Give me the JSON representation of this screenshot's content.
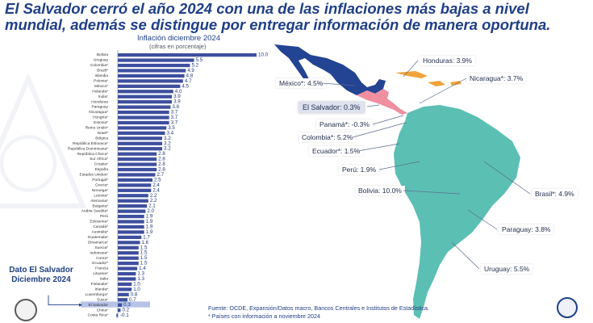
{
  "headline": {
    "line1": "El Salvador cerró el año 2024 con una de las inflaciones más bajas a nivel",
    "line2": "mundial, además se distingue por entregar información de manera oportuna."
  },
  "chart_data": {
    "type": "bar",
    "orientation": "horizontal",
    "title": "Inflación diciembre 2024",
    "subtitle": "(cifras en porcentaje)",
    "highlight_category": "El Salvador",
    "bar_color": "#3e4f9e",
    "highlight_color": "#b6c3e6",
    "categories": [
      "Bolivia",
      "Uruguay",
      "Colombia*",
      "Brazil*",
      "Islandia",
      "Polonia*",
      "México*",
      "Holanda*",
      "India*",
      "Honduras",
      "Paraguay",
      "Nicaragua*",
      "Hungría*",
      "Estonia*",
      "Reino Unido*",
      "Israel*",
      "Bélgica",
      "República Eslovaca*",
      "República Dominicana*",
      "República Checa*",
      "Sur África*",
      "Croatia*",
      "España",
      "Estados Unidos*",
      "Portugal*",
      "Grecia*",
      "Noruega*",
      "Letonia*",
      "Alemania*",
      "Bulgaria*",
      "Arabia Saudita*",
      "Perú",
      "Eslovenia*",
      "Canadá*",
      "Australia*",
      "Guatemala*",
      "Dinamarca*",
      "Suecia*",
      "Indonesia*",
      "Corea*",
      "Ecuador*",
      "Francia",
      "Lituania*",
      "Italia",
      "Finlandia*",
      "Irlanda*",
      "Luxemburgo*",
      "Suiza*",
      "El Salvador",
      "China*",
      "Costa Rica*"
    ],
    "values": [
      10.0,
      5.5,
      5.2,
      4.9,
      4.8,
      4.7,
      4.5,
      4.0,
      3.9,
      3.9,
      3.8,
      3.7,
      3.7,
      3.7,
      3.5,
      3.4,
      3.2,
      3.2,
      3.2,
      2.8,
      2.8,
      2.8,
      2.8,
      2.7,
      2.5,
      2.4,
      2.4,
      2.2,
      2.2,
      2.1,
      2.0,
      1.9,
      1.9,
      1.9,
      1.9,
      1.7,
      1.6,
      1.5,
      1.5,
      1.5,
      1.5,
      1.4,
      1.3,
      1.3,
      1.0,
      1.0,
      0.8,
      0.7,
      0.3,
      0.2,
      -0.1
    ],
    "xlim": [
      -0.3,
      10.5
    ]
  },
  "annotation": {
    "dato_line1": "Dato El Salvador",
    "dato_line2": "Diciembre 2024"
  },
  "map": {
    "colors": {
      "dark": "#234393",
      "light": "#5bbfb4",
      "orange": "#f1a33b",
      "pink": "#ef8fa0"
    },
    "labels": [
      {
        "key": "honduras",
        "text": "Honduras: 3.9%"
      },
      {
        "key": "mexico",
        "text": "México*: 4.5%"
      },
      {
        "key": "nicaragua",
        "text": "Nicaragua*: 3.7%"
      },
      {
        "key": "elsalvador",
        "text": "El Salvador: 0.3%"
      },
      {
        "key": "panama",
        "text": "Panamá*: -0.3%"
      },
      {
        "key": "colombia",
        "text": "Colombia*: 5.2%"
      },
      {
        "key": "ecuador",
        "text": "Ecuador*: 1.5%"
      },
      {
        "key": "peru",
        "text": "Perú: 1.9%"
      },
      {
        "key": "bolivia",
        "text": "Bolivia: 10.0%"
      },
      {
        "key": "brasil",
        "text": "Brasil*: 4.9%"
      },
      {
        "key": "paraguay",
        "text": "Paraguay: 3.8%"
      },
      {
        "key": "uruguay",
        "text": "Uruguay: 5.5%"
      }
    ]
  },
  "source": {
    "line1": "Fuente: OCDE, Expansión/Datos macro, Bancos Centrales e Institutos de Estadística.",
    "line2": "* Países con información a noviembre 2024"
  },
  "icons": {
    "left_logo": "bank-seal-icon",
    "right_logo": "national-emblem-icon"
  }
}
